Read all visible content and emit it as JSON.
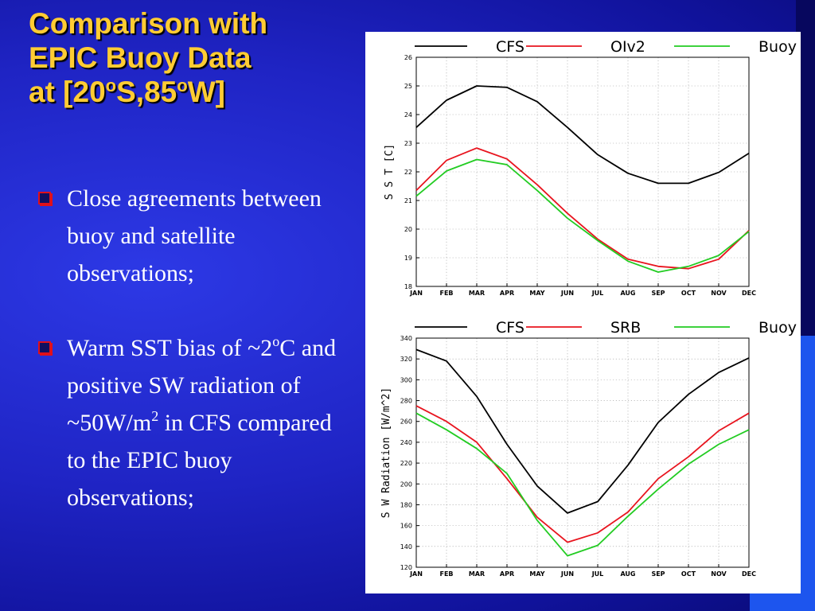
{
  "slide": {
    "title_lines": [
      {
        "text": "Comparison with"
      },
      {
        "text": "EPIC Buoy Data"
      },
      {
        "pre": "at [20",
        "sup1": "o",
        "mid": "S,85",
        "sup2": "o",
        "post": "W]"
      }
    ],
    "bullets": [
      {
        "text": "Close agreements between buoy and satellite observations;"
      },
      {
        "part1": "Warm SST bias of ~2",
        "sup1": "o",
        "part2": "C and positive SW radiation of ~50W/m",
        "sup2": "2",
        "part3": " in CFS compared to the EPIC buoy observations;"
      }
    ],
    "colors": {
      "title": "#ffcc33",
      "bullet_text": "#ffffff",
      "bullet_icon": "#e0101a",
      "background": "#1f24c4"
    }
  },
  "chart_data": [
    {
      "type": "line",
      "title": "",
      "ylabel": "S S T [C]",
      "xlabel": "",
      "x": [
        "JAN",
        "FEB",
        "MAR",
        "APR",
        "MAY",
        "JUN",
        "JUL",
        "AUG",
        "SEP",
        "OCT",
        "NOV",
        "DEC"
      ],
      "ylim": [
        18,
        26
      ],
      "yticks": [
        18,
        19,
        20,
        21,
        22,
        23,
        24,
        25,
        26
      ],
      "grid": true,
      "legend_position": "top",
      "series": [
        {
          "name": "CFS",
          "color": "#000000",
          "values": [
            23.55,
            24.5,
            25.0,
            24.95,
            24.45,
            23.55,
            22.6,
            21.95,
            21.6,
            21.6,
            21.98,
            22.65
          ]
        },
        {
          "name": "OIv2",
          "color": "#e8141e",
          "values": [
            21.35,
            22.4,
            22.83,
            22.45,
            21.55,
            20.55,
            19.65,
            18.95,
            18.7,
            18.62,
            18.95,
            19.95
          ]
        },
        {
          "name": "Buoy",
          "color": "#22cc22",
          "values": [
            21.15,
            22.03,
            22.43,
            22.25,
            21.35,
            20.38,
            19.6,
            18.88,
            18.5,
            18.7,
            19.08,
            19.92
          ]
        }
      ]
    },
    {
      "type": "line",
      "title": "",
      "ylabel": "S W Radiation [W/m^2]",
      "xlabel": "",
      "x": [
        "JAN",
        "FEB",
        "MAR",
        "APR",
        "MAY",
        "JUN",
        "JUL",
        "AUG",
        "SEP",
        "OCT",
        "NOV",
        "DEC"
      ],
      "ylim": [
        120,
        340
      ],
      "yticks": [
        120,
        140,
        160,
        180,
        200,
        220,
        240,
        260,
        280,
        300,
        320,
        340
      ],
      "grid": true,
      "legend_position": "top",
      "series": [
        {
          "name": "CFS",
          "color": "#000000",
          "values": [
            329,
            318,
            284,
            238,
            198,
            172,
            183,
            218,
            259,
            286,
            307,
            321
          ]
        },
        {
          "name": "SRB",
          "color": "#e8141e",
          "values": [
            275,
            260,
            240,
            205,
            168,
            144,
            153,
            173,
            205,
            226,
            251,
            268
          ]
        },
        {
          "name": "Buoy",
          "color": "#22cc22",
          "values": [
            268,
            252,
            234,
            210,
            165,
            131,
            141,
            169,
            195,
            219,
            238,
            252
          ]
        }
      ]
    }
  ]
}
